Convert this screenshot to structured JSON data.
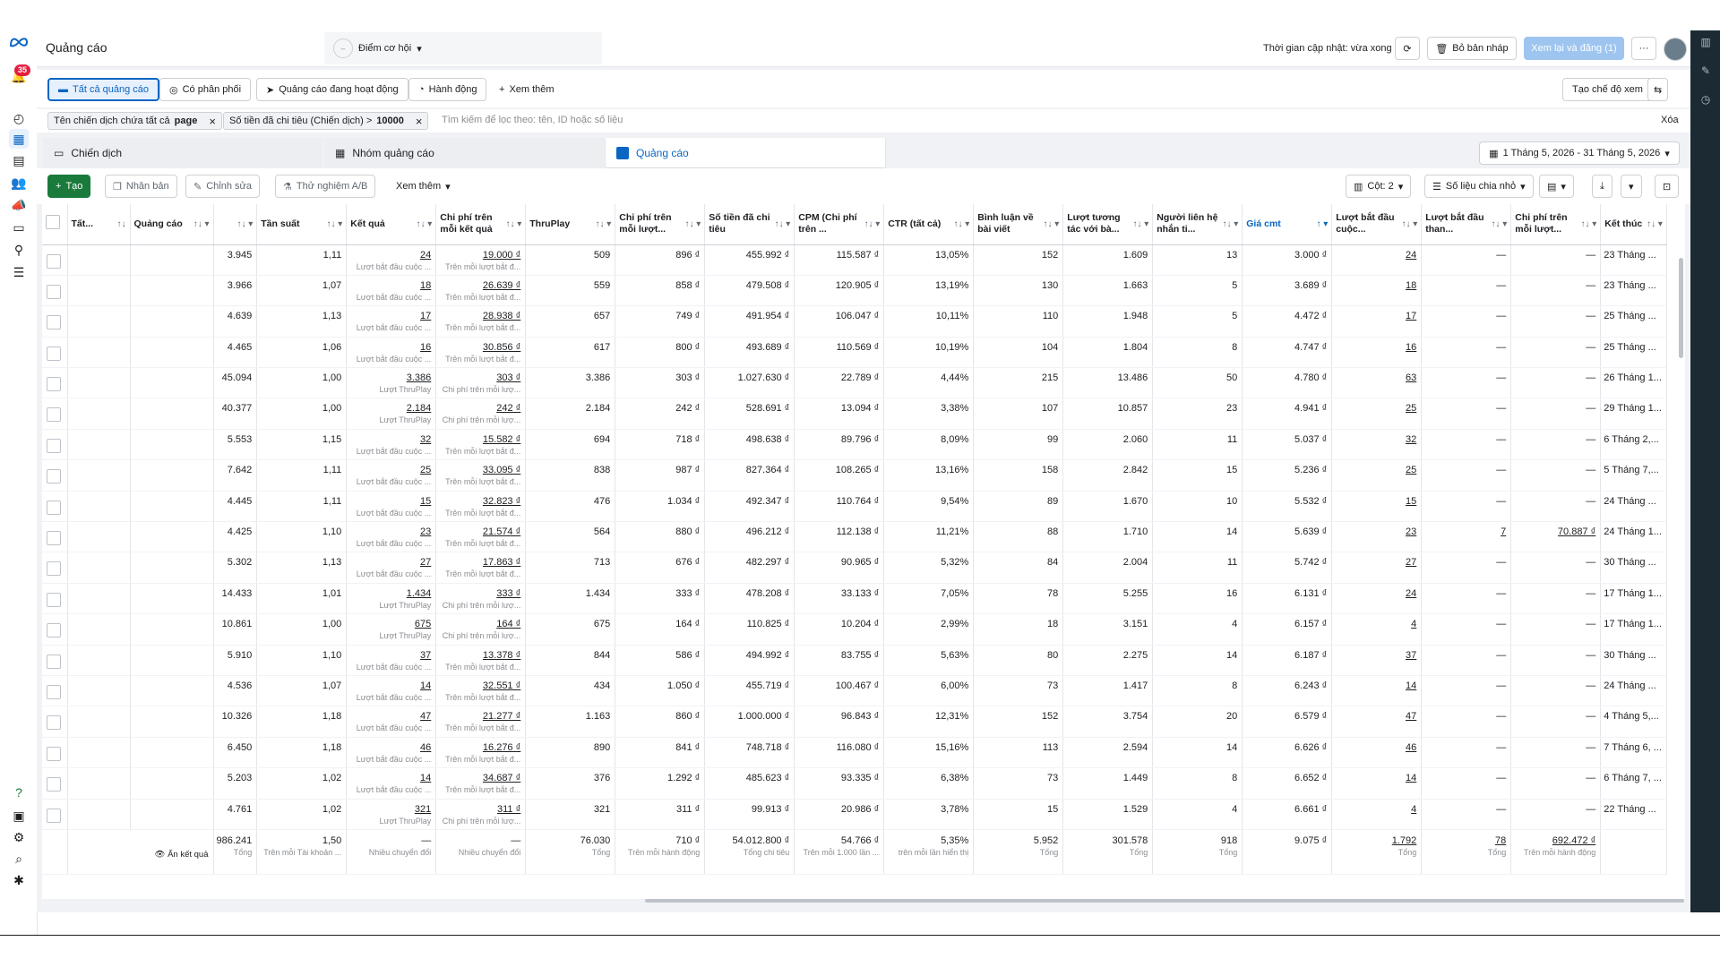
{
  "header": {
    "title": "Quảng cáo",
    "opportunity_label": "Điểm cơ hội",
    "updated_text": "Thời gian cập nhật: vừa xong",
    "discard_label": "Bỏ bản nháp",
    "publish_label": "Xem lại và đăng (1)",
    "more_label": "···"
  },
  "leftnav": {
    "notification_count": "35"
  },
  "tabs": {
    "all_ads": "Tất cả quảng cáo",
    "has_delivery": "Có phân phối",
    "active_ads": "Quảng cáo đang hoạt động",
    "actions": "Hành động",
    "see_more": "Xem thêm",
    "create_view": "Tạo chế độ xem"
  },
  "filters": {
    "f1_label": "Tên chiến dịch chứa tất cả",
    "f1_value": "page",
    "f2_label": "Số tiền đã chi tiêu (Chiến dịch) >",
    "f2_value": "10000",
    "search_placeholder": "Tìm kiếm để lọc theo: tên, ID hoặc số liệu",
    "clear_label": "Xóa"
  },
  "levels": {
    "campaign": "Chiến dịch",
    "adset": "Nhóm quảng cáo",
    "ad": "Quảng cáo",
    "date_range": "1 Tháng 5, 2026 - 31 Tháng 5, 2026"
  },
  "toolbar": {
    "create": "Tạo",
    "duplicate": "Nhân bản",
    "edit": "Chỉnh sửa",
    "ab_test": "Thử nghiệm A/B",
    "see_more": "Xem thêm",
    "columns": "Cột: 2",
    "breakdown": "Số liệu chia nhỏ"
  },
  "table": {
    "headers": {
      "all": "Tất...",
      "ad": "Quảng cáo",
      "reach": "",
      "frequency": "Tần suất",
      "results": "Kết quả",
      "cost_per_result": "Chi phí trên mỗi kết quả",
      "thruplay": "ThruPlay",
      "cost_per_conv": "Chi phí trên mỗi lượt...",
      "spend": "Số tiền đã chi tiêu",
      "cpm": "CPM (Chi phí trên ...",
      "ctr": "CTR (tất cả)",
      "comments": "Bình luận về bài viết",
      "engagement": "Lượt tương tác với bà...",
      "contacts": "Người liên hệ nhắn ti...",
      "cost_comment": "Giá cmt",
      "conv_started": "Lượt bắt đầu cuộc...",
      "conv_started2": "Lượt bắt đầu than...",
      "cost_per_conv2": "Chi phí trên mỗi lượt...",
      "ends": "Kết thúc"
    },
    "rows": [
      {
        "reach": "3.945",
        "freq": "1,11",
        "result": "24",
        "result_sub": "Lượt bắt đầu cuộc ...",
        "cpr": "19.000 ₫",
        "cpr_sub": "Trên mỗi lượt bắt đ...",
        "thruplay": "509",
        "cpc": "896 ₫",
        "spend": "455.992 ₫",
        "cpm": "115.587 ₫",
        "ctr": "13,05%",
        "comments": "152",
        "engage": "1.609",
        "contacts": "13",
        "giacmt": "3.000 ₫",
        "conv": "24",
        "conv2": "—",
        "cpc2": "—",
        "ends": "23 Tháng ..."
      },
      {
        "reach": "3.966",
        "freq": "1,07",
        "result": "18",
        "result_sub": "Lượt bắt đầu cuộc ...",
        "cpr": "26.639 ₫",
        "cpr_sub": "Trên mỗi lượt bắt đ...",
        "thruplay": "559",
        "cpc": "858 ₫",
        "spend": "479.508 ₫",
        "cpm": "120.905 ₫",
        "ctr": "13,19%",
        "comments": "130",
        "engage": "1.663",
        "contacts": "5",
        "giacmt": "3.689 ₫",
        "conv": "18",
        "conv2": "—",
        "cpc2": "—",
        "ends": "23 Tháng ..."
      },
      {
        "reach": "4.639",
        "freq": "1,13",
        "result": "17",
        "result_sub": "Lượt bắt đầu cuộc ...",
        "cpr": "28.938 ₫",
        "cpr_sub": "Trên mỗi lượt bắt đ...",
        "thruplay": "657",
        "cpc": "749 ₫",
        "spend": "491.954 ₫",
        "cpm": "106.047 ₫",
        "ctr": "10,11%",
        "comments": "110",
        "engage": "1.948",
        "contacts": "5",
        "giacmt": "4.472 ₫",
        "conv": "17",
        "conv2": "—",
        "cpc2": "—",
        "ends": "25 Tháng ..."
      },
      {
        "reach": "4.465",
        "freq": "1,06",
        "result": "16",
        "result_sub": "Lượt bắt đầu cuộc ...",
        "cpr": "30.856 ₫",
        "cpr_sub": "Trên mỗi lượt bắt đ...",
        "thruplay": "617",
        "cpc": "800 ₫",
        "spend": "493.689 ₫",
        "cpm": "110.569 ₫",
        "ctr": "10,19%",
        "comments": "104",
        "engage": "1.804",
        "contacts": "8",
        "giacmt": "4.747 ₫",
        "conv": "16",
        "conv2": "—",
        "cpc2": "—",
        "ends": "25 Tháng ..."
      },
      {
        "reach": "45.094",
        "freq": "1,00",
        "result": "3.386",
        "result_sub": "Lượt ThruPlay",
        "cpr": "303 ₫",
        "cpr_sub": "Chi phí trên mỗi lượ...",
        "thruplay": "3.386",
        "cpc": "303 ₫",
        "spend": "1.027.630 ₫",
        "cpm": "22.789 ₫",
        "ctr": "4,44%",
        "comments": "215",
        "engage": "13.486",
        "contacts": "50",
        "giacmt": "4.780 ₫",
        "conv": "63",
        "conv2": "—",
        "cpc2": "—",
        "ends": "26 Tháng 1..."
      },
      {
        "reach": "40.377",
        "freq": "1,00",
        "result": "2.184",
        "result_sub": "Lượt ThruPlay",
        "cpr": "242 ₫",
        "cpr_sub": "Chi phí trên mỗi lượ...",
        "thruplay": "2.184",
        "cpc": "242 ₫",
        "spend": "528.691 ₫",
        "cpm": "13.094 ₫",
        "ctr": "3,38%",
        "comments": "107",
        "engage": "10.857",
        "contacts": "23",
        "giacmt": "4.941 ₫",
        "conv": "25",
        "conv2": "—",
        "cpc2": "—",
        "ends": "29 Tháng 1..."
      },
      {
        "reach": "5.553",
        "freq": "1,15",
        "result": "32",
        "result_sub": "Lượt bắt đầu cuộc ...",
        "cpr": "15.582 ₫",
        "cpr_sub": "Trên mỗi lượt bắt đ...",
        "thruplay": "694",
        "cpc": "718 ₫",
        "spend": "498.638 ₫",
        "cpm": "89.796 ₫",
        "ctr": "8,09%",
        "comments": "99",
        "engage": "2.060",
        "contacts": "11",
        "giacmt": "5.037 ₫",
        "conv": "32",
        "conv2": "—",
        "cpc2": "—",
        "ends": "6 Tháng 2,..."
      },
      {
        "reach": "7.642",
        "freq": "1,11",
        "result": "25",
        "result_sub": "Lượt bắt đầu cuộc ...",
        "cpr": "33.095 ₫",
        "cpr_sub": "Trên mỗi lượt bắt đ...",
        "thruplay": "838",
        "cpc": "987 ₫",
        "spend": "827.364 ₫",
        "cpm": "108.265 ₫",
        "ctr": "13,16%",
        "comments": "158",
        "engage": "2.842",
        "contacts": "15",
        "giacmt": "5.236 ₫",
        "conv": "25",
        "conv2": "—",
        "cpc2": "—",
        "ends": "5 Tháng 7,..."
      },
      {
        "reach": "4.445",
        "freq": "1,11",
        "result": "15",
        "result_sub": "Lượt bắt đầu cuộc ...",
        "cpr": "32.823 ₫",
        "cpr_sub": "Trên mỗi lượt bắt đ...",
        "thruplay": "476",
        "cpc": "1.034 ₫",
        "spend": "492.347 ₫",
        "cpm": "110.764 ₫",
        "ctr": "9,54%",
        "comments": "89",
        "engage": "1.670",
        "contacts": "10",
        "giacmt": "5.532 ₫",
        "conv": "15",
        "conv2": "—",
        "cpc2": "—",
        "ends": "24 Tháng ..."
      },
      {
        "reach": "4.425",
        "freq": "1,10",
        "result": "23",
        "result_sub": "Lượt bắt đầu cuộc ...",
        "cpr": "21.574 ₫",
        "cpr_sub": "Trên mỗi lượt bắt đ...",
        "thruplay": "564",
        "cpc": "880 ₫",
        "spend": "496.212 ₫",
        "cpm": "112.138 ₫",
        "ctr": "11,21%",
        "comments": "88",
        "engage": "1.710",
        "contacts": "14",
        "giacmt": "5.639 ₫",
        "conv": "23",
        "conv2": "7",
        "cpc2": "70.887 ₫",
        "ends": "24 Tháng 1..."
      },
      {
        "reach": "5.302",
        "freq": "1,13",
        "result": "27",
        "result_sub": "Lượt bắt đầu cuộc ...",
        "cpr": "17.863 ₫",
        "cpr_sub": "Trên mỗi lượt bắt đ...",
        "thruplay": "713",
        "cpc": "676 ₫",
        "spend": "482.297 ₫",
        "cpm": "90.965 ₫",
        "ctr": "5,32%",
        "comments": "84",
        "engage": "2.004",
        "contacts": "11",
        "giacmt": "5.742 ₫",
        "conv": "27",
        "conv2": "—",
        "cpc2": "—",
        "ends": "30 Tháng ..."
      },
      {
        "reach": "14.433",
        "freq": "1,01",
        "result": "1.434",
        "result_sub": "Lượt ThruPlay",
        "cpr": "333 ₫",
        "cpr_sub": "Chi phí trên mỗi lượ...",
        "thruplay": "1.434",
        "cpc": "333 ₫",
        "spend": "478.208 ₫",
        "cpm": "33.133 ₫",
        "ctr": "7,05%",
        "comments": "78",
        "engage": "5.255",
        "contacts": "16",
        "giacmt": "6.131 ₫",
        "conv": "24",
        "conv2": "—",
        "cpc2": "—",
        "ends": "17 Tháng 1..."
      },
      {
        "reach": "10.861",
        "freq": "1,00",
        "result": "675",
        "result_sub": "Lượt ThruPlay",
        "cpr": "164 ₫",
        "cpr_sub": "Chi phí trên mỗi lượ...",
        "thruplay": "675",
        "cpc": "164 ₫",
        "spend": "110.825 ₫",
        "cpm": "10.204 ₫",
        "ctr": "2,99%",
        "comments": "18",
        "engage": "3.151",
        "contacts": "4",
        "giacmt": "6.157 ₫",
        "conv": "4",
        "conv2": "—",
        "cpc2": "—",
        "ends": "17 Tháng 1..."
      },
      {
        "reach": "5.910",
        "freq": "1,10",
        "result": "37",
        "result_sub": "Lượt bắt đầu cuộc ...",
        "cpr": "13.378 ₫",
        "cpr_sub": "Trên mỗi lượt bắt đ...",
        "thruplay": "844",
        "cpc": "586 ₫",
        "spend": "494.992 ₫",
        "cpm": "83.755 ₫",
        "ctr": "5,63%",
        "comments": "80",
        "engage": "2.275",
        "contacts": "14",
        "giacmt": "6.187 ₫",
        "conv": "37",
        "conv2": "—",
        "cpc2": "—",
        "ends": "30 Tháng ..."
      },
      {
        "reach": "4.536",
        "freq": "1,07",
        "result": "14",
        "result_sub": "Lượt bắt đầu cuộc ...",
        "cpr": "32.551 ₫",
        "cpr_sub": "Trên mỗi lượt bắt đ...",
        "thruplay": "434",
        "cpc": "1.050 ₫",
        "spend": "455.719 ₫",
        "cpm": "100.467 ₫",
        "ctr": "6,00%",
        "comments": "73",
        "engage": "1.417",
        "contacts": "8",
        "giacmt": "6.243 ₫",
        "conv": "14",
        "conv2": "—",
        "cpc2": "—",
        "ends": "24 Tháng ..."
      },
      {
        "reach": "10.326",
        "freq": "1,18",
        "result": "47",
        "result_sub": "Lượt bắt đầu cuộc ...",
        "cpr": "21.277 ₫",
        "cpr_sub": "Trên mỗi lượt bắt đ...",
        "thruplay": "1.163",
        "cpc": "860 ₫",
        "spend": "1.000.000 ₫",
        "cpm": "96.843 ₫",
        "ctr": "12,31%",
        "comments": "152",
        "engage": "3.754",
        "contacts": "20",
        "giacmt": "6.579 ₫",
        "conv": "47",
        "conv2": "—",
        "cpc2": "—",
        "ends": "4 Tháng 5,..."
      },
      {
        "reach": "6.450",
        "freq": "1,18",
        "result": "46",
        "result_sub": "Lượt bắt đầu cuộc ...",
        "cpr": "16.276 ₫",
        "cpr_sub": "Trên mỗi lượt bắt đ...",
        "thruplay": "890",
        "cpc": "841 ₫",
        "spend": "748.718 ₫",
        "cpm": "116.080 ₫",
        "ctr": "15,16%",
        "comments": "113",
        "engage": "2.594",
        "contacts": "14",
        "giacmt": "6.626 ₫",
        "conv": "46",
        "conv2": "—",
        "cpc2": "—",
        "ends": "7 Tháng 6, ..."
      },
      {
        "reach": "5.203",
        "freq": "1,02",
        "result": "14",
        "result_sub": "Lượt bắt đầu cuộc ...",
        "cpr": "34.687 ₫",
        "cpr_sub": "Trên mỗi lượt bắt đ...",
        "thruplay": "376",
        "cpc": "1.292 ₫",
        "spend": "485.623 ₫",
        "cpm": "93.335 ₫",
        "ctr": "6,38%",
        "comments": "73",
        "engage": "1.449",
        "contacts": "8",
        "giacmt": "6.652 ₫",
        "conv": "14",
        "conv2": "—",
        "cpc2": "—",
        "ends": "6 Tháng 7, ..."
      },
      {
        "reach": "4.761",
        "freq": "1,02",
        "result": "321",
        "result_sub": "Lượt ThruPlay",
        "cpr": "311 ₫",
        "cpr_sub": "Chi phí trên mỗi lượ...",
        "thruplay": "321",
        "cpc": "311 ₫",
        "spend": "99.913 ₫",
        "cpm": "20.986 ₫",
        "ctr": "3,78%",
        "comments": "15",
        "engage": "1.529",
        "contacts": "4",
        "giacmt": "6.661 ₫",
        "conv": "4",
        "conv2": "—",
        "cpc2": "—",
        "ends": "22 Tháng ..."
      }
    ],
    "totals": {
      "hide_results": "Ẩn kết quả",
      "reach": "986.241",
      "reach_sub": "Tổng",
      "freq": "1,50",
      "freq_sub": "Trên mỗi Tài khoản ...",
      "result": "—",
      "result_sub": "Nhiều chuyển đổi",
      "cpr": "—",
      "cpr_sub": "Nhiều chuyển đổi",
      "thruplay": "76.030",
      "thruplay_sub": "Tổng",
      "cpc": "710 ₫",
      "cpc_sub": "Trên mỗi hành động",
      "spend": "54.012.800 ₫",
      "spend_sub": "Tổng chi tiêu",
      "cpm": "54.766 ₫",
      "cpm_sub": "Trên mỗi 1.000 lần ...",
      "ctr": "5,35%",
      "ctr_sub": "trên mỗi lần hiển thị",
      "comments": "5.952",
      "comments_sub": "Tổng",
      "engage": "301.578",
      "engage_sub": "Tổng",
      "contacts": "918",
      "contacts_sub": "Tổng",
      "giacmt": "9.075 ₫",
      "conv": "1.792",
      "conv_sub": "Tổng",
      "conv2": "78",
      "conv2_sub": "Tổng",
      "cpc2": "692.472 ₫",
      "cpc2_sub": "Trên mỗi hành động"
    }
  },
  "colors": {
    "accent": "#0a66c2",
    "create_green": "#1a7a3c",
    "badge_red": "#e41e3f"
  }
}
